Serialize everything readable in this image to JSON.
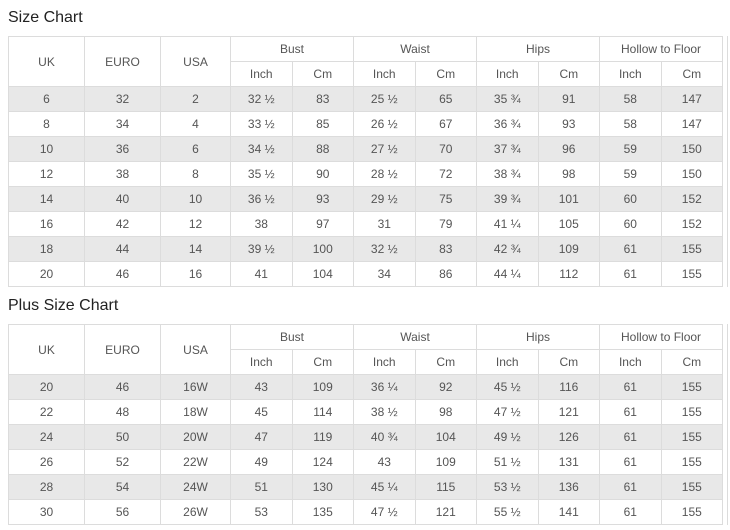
{
  "page": {
    "size_chart_title": "Size Chart",
    "plus_size_chart_title": "Plus Size Chart"
  },
  "table_structure": {
    "simple_columns": [
      "UK",
      "EURO",
      "USA"
    ],
    "group_columns": [
      "Bust",
      "Waist",
      "Hips",
      "Hollow to Floor"
    ],
    "sub_columns": [
      "Inch",
      "Cm"
    ]
  },
  "size_chart": {
    "rows": [
      [
        "6",
        "32",
        "2",
        "32 ½",
        "83",
        "25 ½",
        "65",
        "35 ¾",
        "91",
        "58",
        "147"
      ],
      [
        "8",
        "34",
        "4",
        "33 ½",
        "85",
        "26 ½",
        "67",
        "36 ¾",
        "93",
        "58",
        "147"
      ],
      [
        "10",
        "36",
        "6",
        "34 ½",
        "88",
        "27 ½",
        "70",
        "37 ¾",
        "96",
        "59",
        "150"
      ],
      [
        "12",
        "38",
        "8",
        "35 ½",
        "90",
        "28 ½",
        "72",
        "38 ¾",
        "98",
        "59",
        "150"
      ],
      [
        "14",
        "40",
        "10",
        "36 ½",
        "93",
        "29 ½",
        "75",
        "39 ¾",
        "101",
        "60",
        "152"
      ],
      [
        "16",
        "42",
        "12",
        "38",
        "97",
        "31",
        "79",
        "41 ¼",
        "105",
        "60",
        "152"
      ],
      [
        "18",
        "44",
        "14",
        "39 ½",
        "100",
        "32 ½",
        "83",
        "42 ¾",
        "109",
        "61",
        "155"
      ],
      [
        "20",
        "46",
        "16",
        "41",
        "104",
        "34",
        "86",
        "44 ¼",
        "112",
        "61",
        "155"
      ]
    ]
  },
  "plus_size_chart": {
    "rows": [
      [
        "20",
        "46",
        "16W",
        "43",
        "109",
        "36 ¼",
        "92",
        "45 ½",
        "116",
        "61",
        "155"
      ],
      [
        "22",
        "48",
        "18W",
        "45",
        "114",
        "38 ½",
        "98",
        "47 ½",
        "121",
        "61",
        "155"
      ],
      [
        "24",
        "50",
        "20W",
        "47",
        "119",
        "40 ¾",
        "104",
        "49 ½",
        "126",
        "61",
        "155"
      ],
      [
        "26",
        "52",
        "22W",
        "49",
        "124",
        "43",
        "109",
        "51 ½",
        "131",
        "61",
        "155"
      ],
      [
        "28",
        "54",
        "24W",
        "51",
        "130",
        "45 ¼",
        "115",
        "53 ½",
        "136",
        "61",
        "155"
      ],
      [
        "30",
        "56",
        "26W",
        "53",
        "135",
        "47 ½",
        "121",
        "55 ½",
        "141",
        "61",
        "155"
      ]
    ]
  },
  "colors": {
    "border": "#dcdcdc",
    "stripe": "#e8e8e8",
    "cell_text": "#555555",
    "title_text": "#222222"
  }
}
